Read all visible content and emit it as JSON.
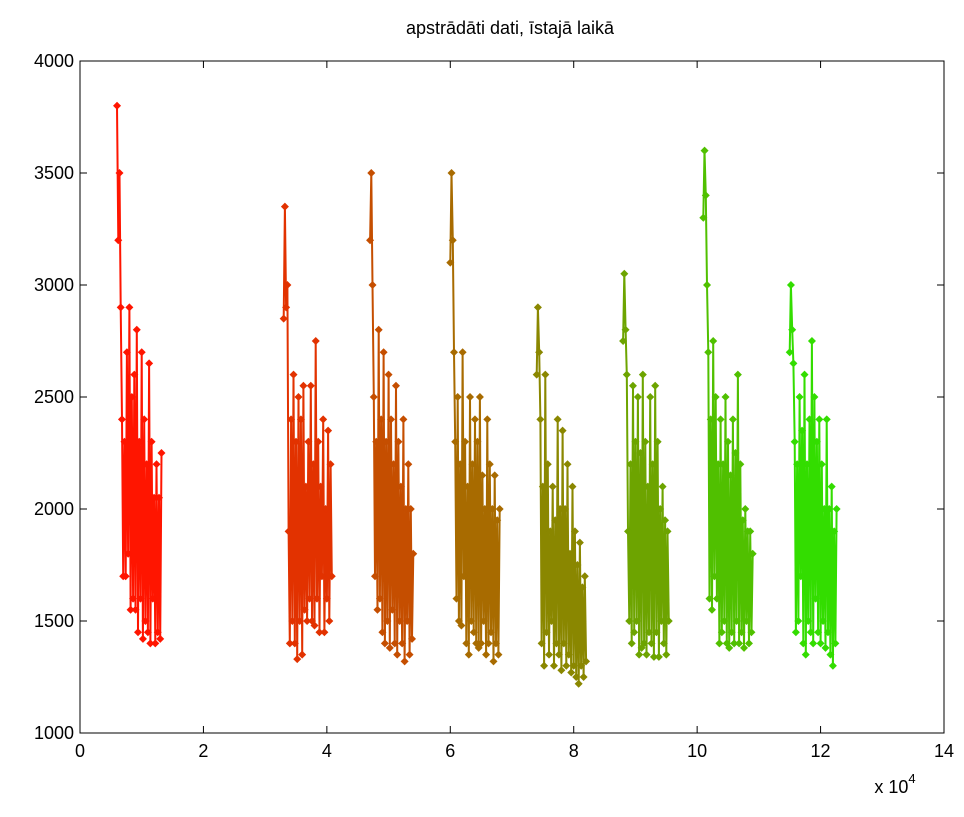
{
  "chart_data": {
    "type": "line",
    "title": "apstrādāti dati, īstajā laikā",
    "xlabel": "",
    "ylabel": "",
    "x_exponent_label": "x 10",
    "x_exponent_power": "4",
    "xlim": [
      0,
      14
    ],
    "ylim": [
      1000,
      4000
    ],
    "x_ticks": [
      0,
      2,
      4,
      6,
      8,
      10,
      12,
      14
    ],
    "x_tick_labels": [
      "0",
      "2",
      "4",
      "6",
      "8",
      "10",
      "12",
      "14"
    ],
    "y_ticks": [
      1000,
      1500,
      2000,
      2500,
      3000,
      3500,
      4000
    ],
    "y_tick_labels": [
      "1000",
      "1500",
      "2000",
      "2500",
      "3000",
      "3500",
      "4000"
    ],
    "grid": false,
    "legend": "none",
    "marker": "diamond",
    "color_start": "#ff1500",
    "color_end": "#33dd00",
    "series": [
      {
        "x": [
          0.6,
          0.62,
          0.64,
          0.66,
          0.68,
          0.7,
          0.72,
          0.74,
          0.76,
          0.78,
          0.8,
          0.82,
          0.84,
          0.86,
          0.88,
          0.9,
          0.92,
          0.94,
          0.96,
          0.98,
          1.0,
          1.02,
          1.04,
          1.06,
          1.08,
          1.1,
          1.12,
          1.14,
          1.16,
          1.18,
          1.2,
          1.22,
          1.24,
          1.26,
          1.28,
          1.3,
          1.32
        ],
        "y": [
          3800,
          3200,
          3500,
          2900,
          2400,
          1700,
          2300,
          1700,
          2700,
          1800,
          2900,
          1550,
          2500,
          1600,
          2600,
          1550,
          2800,
          1450,
          2300,
          1600,
          2700,
          1420,
          2400,
          1500,
          2200,
          1450,
          2650,
          1400,
          2300,
          1600,
          2050,
          1400,
          2200,
          1450,
          2050,
          1420,
          2250
        ]
      },
      {
        "x": [
          3.3,
          3.32,
          3.34,
          3.36,
          3.38,
          3.4,
          3.42,
          3.44,
          3.46,
          3.48,
          3.5,
          3.52,
          3.54,
          3.56,
          3.58,
          3.6,
          3.62,
          3.64,
          3.66,
          3.68,
          3.7,
          3.72,
          3.74,
          3.76,
          3.78,
          3.8,
          3.82,
          3.84,
          3.86,
          3.88,
          3.9,
          3.92,
          3.94,
          3.96,
          3.98,
          4.0,
          4.02,
          4.04,
          4.06,
          4.08
        ],
        "y": [
          2850,
          3350,
          2900,
          3000,
          1900,
          1400,
          2400,
          1500,
          2600,
          1400,
          2300,
          1330,
          2500,
          1500,
          2400,
          1350,
          2550,
          1550,
          2100,
          1500,
          2300,
          1600,
          2550,
          1500,
          2200,
          1480,
          2750,
          1600,
          2300,
          1450,
          2100,
          1700,
          2400,
          1450,
          2000,
          1600,
          2350,
          1500,
          2200,
          1700
        ]
      },
      {
        "x": [
          4.7,
          4.72,
          4.74,
          4.76,
          4.78,
          4.8,
          4.82,
          4.84,
          4.86,
          4.88,
          4.9,
          4.92,
          4.94,
          4.96,
          4.98,
          5.0,
          5.02,
          5.04,
          5.06,
          5.08,
          5.1,
          5.12,
          5.14,
          5.16,
          5.18,
          5.2,
          5.22,
          5.24,
          5.26,
          5.28,
          5.3,
          5.32,
          5.34,
          5.36,
          5.38,
          5.4
        ],
        "y": [
          3200,
          3500,
          3000,
          2500,
          1700,
          2300,
          1550,
          2800,
          1600,
          2400,
          1450,
          2700,
          1400,
          2300,
          1500,
          2600,
          1380,
          2400,
          1550,
          2200,
          1400,
          2550,
          1350,
          2300,
          1500,
          2100,
          1400,
          2400,
          1320,
          2000,
          1500,
          2200,
          1350,
          2000,
          1420,
          1800
        ]
      },
      {
        "x": [
          6.0,
          6.02,
          6.04,
          6.06,
          6.08,
          6.1,
          6.12,
          6.14,
          6.16,
          6.18,
          6.2,
          6.22,
          6.24,
          6.26,
          6.28,
          6.3,
          6.32,
          6.34,
          6.36,
          6.38,
          6.4,
          6.42,
          6.44,
          6.46,
          6.48,
          6.5,
          6.52,
          6.54,
          6.56,
          6.58,
          6.6,
          6.62,
          6.64,
          6.66,
          6.68,
          6.7,
          6.72,
          6.74,
          6.76,
          6.78,
          6.8
        ],
        "y": [
          3100,
          3500,
          3200,
          2700,
          2300,
          1600,
          2500,
          1500,
          2200,
          1480,
          2700,
          1700,
          2300,
          1400,
          2100,
          1350,
          2500,
          1500,
          2200,
          1450,
          2400,
          1400,
          2300,
          1380,
          2500,
          1400,
          2150,
          1500,
          2000,
          1350,
          2400,
          1400,
          2200,
          1450,
          2000,
          1320,
          2150,
          1400,
          1950,
          1350,
          2000
        ]
      },
      {
        "x": [
          7.4,
          7.42,
          7.44,
          7.46,
          7.48,
          7.5,
          7.52,
          7.54,
          7.56,
          7.58,
          7.6,
          7.62,
          7.64,
          7.66,
          7.68,
          7.7,
          7.72,
          7.74,
          7.76,
          7.78,
          7.8,
          7.82,
          7.84,
          7.86,
          7.88,
          7.9,
          7.92,
          7.94,
          7.96,
          7.98,
          8.0,
          8.02,
          8.04,
          8.06,
          8.08,
          8.1,
          8.12,
          8.14,
          8.16,
          8.18,
          8.2
        ],
        "y": [
          2600,
          2900,
          2700,
          2400,
          1400,
          2100,
          1300,
          2600,
          1450,
          2200,
          1350,
          1900,
          1500,
          2100,
          1300,
          1950,
          1400,
          2400,
          1350,
          2000,
          1280,
          2350,
          1400,
          2000,
          1300,
          2200,
          1350,
          1800,
          1270,
          2100,
          1300,
          1900,
          1250,
          1750,
          1220,
          1850,
          1300,
          1650,
          1250,
          1700,
          1320
        ]
      },
      {
        "x": [
          8.8,
          8.82,
          8.84,
          8.86,
          8.88,
          8.9,
          8.92,
          8.94,
          8.96,
          8.98,
          9.0,
          9.02,
          9.04,
          9.06,
          9.08,
          9.1,
          9.12,
          9.14,
          9.16,
          9.18,
          9.2,
          9.22,
          9.24,
          9.26,
          9.28,
          9.3,
          9.32,
          9.34,
          9.36,
          9.38,
          9.4,
          9.42,
          9.44,
          9.46,
          9.48,
          9.5,
          9.52,
          9.54
        ],
        "y": [
          2750,
          3050,
          2800,
          2600,
          1900,
          1500,
          2200,
          1400,
          2550,
          1450,
          2300,
          1500,
          2500,
          1350,
          2250,
          1380,
          2600,
          1400,
          2300,
          1350,
          2100,
          1450,
          2500,
          1400,
          2200,
          1340,
          2550,
          1450,
          2300,
          1340,
          2000,
          1500,
          2100,
          1400,
          1950,
          1350,
          1900,
          1500
        ]
      },
      {
        "x": [
          10.1,
          10.12,
          10.14,
          10.16,
          10.18,
          10.2,
          10.22,
          10.24,
          10.26,
          10.28,
          10.3,
          10.32,
          10.34,
          10.36,
          10.38,
          10.4,
          10.42,
          10.44,
          10.46,
          10.48,
          10.5,
          10.52,
          10.54,
          10.56,
          10.58,
          10.6,
          10.62,
          10.64,
          10.66,
          10.68,
          10.7,
          10.72,
          10.74,
          10.76,
          10.78,
          10.8,
          10.82,
          10.84,
          10.86,
          10.88,
          10.9
        ],
        "y": [
          3300,
          3600,
          3400,
          3000,
          2700,
          1600,
          2400,
          1550,
          2750,
          1700,
          2500,
          1600,
          2200,
          1400,
          2400,
          1450,
          2200,
          1500,
          2500,
          1400,
          2300,
          1380,
          2150,
          1450,
          2400,
          1400,
          2250,
          1500,
          2600,
          1400,
          2200,
          1450,
          1950,
          1380,
          2000,
          1500,
          1900,
          1400,
          1900,
          1450,
          1800
        ]
      },
      {
        "x": [
          11.5,
          11.52,
          11.54,
          11.56,
          11.58,
          11.6,
          11.62,
          11.64,
          11.66,
          11.68,
          11.7,
          11.72,
          11.74,
          11.76,
          11.78,
          11.8,
          11.82,
          11.84,
          11.86,
          11.88,
          11.9,
          11.92,
          11.94,
          11.96,
          11.98,
          12.0,
          12.02,
          12.04,
          12.06,
          12.08,
          12.1,
          12.12,
          12.14,
          12.16,
          12.18,
          12.2,
          12.22,
          12.24,
          12.26
        ],
        "y": [
          2700,
          3000,
          2800,
          2650,
          2300,
          1450,
          2200,
          1500,
          2500,
          1700,
          2350,
          1400,
          2600,
          1350,
          2200,
          1500,
          2400,
          1450,
          2750,
          1400,
          2500,
          1600,
          2300,
          1450,
          2400,
          1400,
          2200,
          1500,
          2000,
          1380,
          2400,
          1450,
          2000,
          1350,
          2100,
          1300,
          1900,
          1400,
          2000
        ]
      }
    ]
  }
}
